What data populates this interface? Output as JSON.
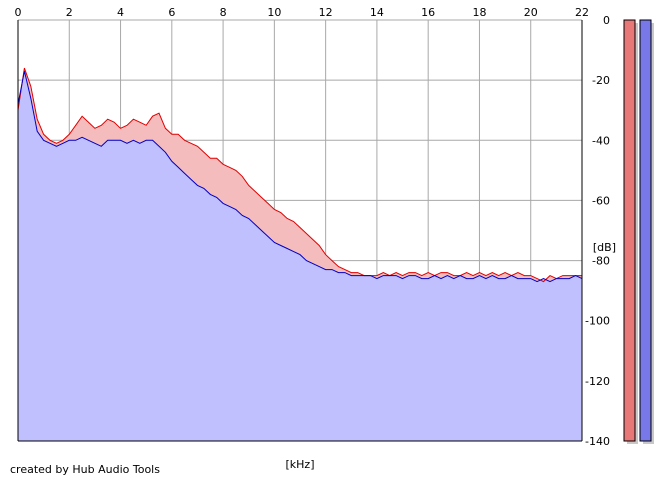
{
  "footer": {
    "credit": "created by Hub Audio Tools"
  },
  "chart_data": {
    "type": "area",
    "xlabel": "[kHz]",
    "ylabel": "[dB]",
    "xlim": [
      0,
      22
    ],
    "ylim": [
      -140,
      0
    ],
    "x_ticks": [
      "0",
      "2",
      "4",
      "6",
      "8",
      "10",
      "12",
      "14",
      "16",
      "18",
      "20",
      "22"
    ],
    "y_ticks": [
      "0",
      "-20",
      "-40",
      "-60",
      "-80",
      "-100",
      "-120",
      "-140"
    ],
    "grid": true,
    "legend": "none",
    "x_step_khz": 0.25,
    "series": [
      {
        "color": "#e00000",
        "fill": "#f4bcbc",
        "x": [
          0,
          0.25,
          0.5,
          0.75,
          1,
          1.25,
          1.5,
          1.75,
          2,
          2.25,
          2.5,
          2.75,
          3,
          3.25,
          3.5,
          3.75,
          4,
          4.25,
          4.5,
          4.75,
          5,
          5.25,
          5.5,
          5.75,
          6,
          6.25,
          6.5,
          6.75,
          7,
          7.25,
          7.5,
          7.75,
          8,
          8.25,
          8.5,
          8.75,
          9,
          9.25,
          9.5,
          9.75,
          10,
          10.25,
          10.5,
          10.75,
          11,
          11.25,
          11.5,
          11.75,
          12,
          12.25,
          12.5,
          12.75,
          13,
          13.25,
          13.5,
          13.75,
          14,
          14.25,
          14.5,
          14.75,
          15,
          15.25,
          15.5,
          15.75,
          16,
          16.25,
          16.5,
          16.75,
          17,
          17.25,
          17.5,
          17.75,
          18,
          18.25,
          18.5,
          18.75,
          19,
          19.25,
          19.5,
          19.75,
          20,
          20.25,
          20.5,
          20.75,
          21,
          21.25,
          21.5,
          21.75,
          22
        ],
        "y": [
          -30,
          -16,
          -22,
          -33,
          -38,
          -40,
          -41,
          -40,
          -38,
          -35,
          -32,
          -34,
          -36,
          -35,
          -33,
          -34,
          -36,
          -35,
          -33,
          -34,
          -35,
          -32,
          -31,
          -36,
          -38,
          -38,
          -40,
          -41,
          -42,
          -44,
          -46,
          -46,
          -48,
          -49,
          -50,
          -52,
          -55,
          -57,
          -59,
          -61,
          -63,
          -64,
          -66,
          -67,
          -69,
          -71,
          -73,
          -75,
          -78,
          -80,
          -82,
          -83,
          -84,
          -84,
          -85,
          -85,
          -85,
          -84,
          -85,
          -84,
          -85,
          -84,
          -84,
          -85,
          -84,
          -85,
          -84,
          -84,
          -85,
          -85,
          -84,
          -85,
          -84,
          -85,
          -84,
          -85,
          -84,
          -85,
          -84,
          -85,
          -85,
          -86,
          -87,
          -85,
          -86,
          -85,
          -85,
          -85,
          -85
        ]
      },
      {
        "color": "#0000c8",
        "fill": "#c0c0ff",
        "x": [
          0,
          0.25,
          0.5,
          0.75,
          1,
          1.25,
          1.5,
          1.75,
          2,
          2.25,
          2.5,
          2.75,
          3,
          3.25,
          3.5,
          3.75,
          4,
          4.25,
          4.5,
          4.75,
          5,
          5.25,
          5.5,
          5.75,
          6,
          6.25,
          6.5,
          6.75,
          7,
          7.25,
          7.5,
          7.75,
          8,
          8.25,
          8.5,
          8.75,
          9,
          9.25,
          9.5,
          9.75,
          10,
          10.25,
          10.5,
          10.75,
          11,
          11.25,
          11.5,
          11.75,
          12,
          12.25,
          12.5,
          12.75,
          13,
          13.25,
          13.5,
          13.75,
          14,
          14.25,
          14.5,
          14.75,
          15,
          15.25,
          15.5,
          15.75,
          16,
          16.25,
          16.5,
          16.75,
          17,
          17.25,
          17.5,
          17.75,
          18,
          18.25,
          18.5,
          18.75,
          19,
          19.25,
          19.5,
          19.75,
          20,
          20.25,
          20.5,
          20.75,
          21,
          21.25,
          21.5,
          21.75,
          22
        ],
        "y": [
          -28,
          -17,
          -26,
          -37,
          -40,
          -41,
          -42,
          -41,
          -40,
          -40,
          -39,
          -40,
          -41,
          -42,
          -40,
          -40,
          -40,
          -41,
          -40,
          -41,
          -40,
          -40,
          -42,
          -44,
          -47,
          -49,
          -51,
          -53,
          -55,
          -56,
          -58,
          -59,
          -61,
          -62,
          -63,
          -65,
          -66,
          -68,
          -70,
          -72,
          -74,
          -75,
          -76,
          -77,
          -78,
          -80,
          -81,
          -82,
          -83,
          -83,
          -84,
          -84,
          -85,
          -85,
          -85,
          -85,
          -86,
          -85,
          -85,
          -85,
          -86,
          -85,
          -85,
          -86,
          -86,
          -85,
          -86,
          -85,
          -86,
          -85,
          -86,
          -86,
          -85,
          -86,
          -85,
          -86,
          -86,
          -85,
          -86,
          -86,
          -86,
          -87,
          -86,
          -87,
          -86,
          -86,
          -86,
          -85,
          -86
        ]
      }
    ],
    "level_meters": [
      {
        "color": "#e87878",
        "value_db": 0
      },
      {
        "color": "#7878e8",
        "value_db": 0
      }
    ]
  }
}
